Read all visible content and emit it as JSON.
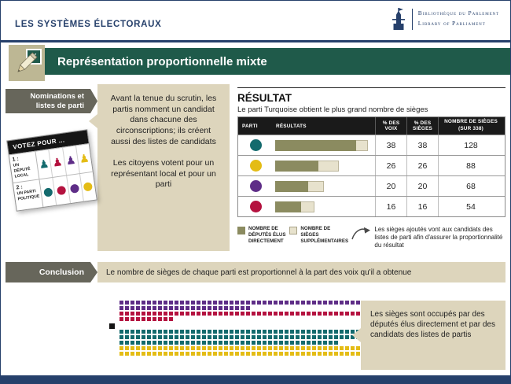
{
  "colors": {
    "navy": "#26406b",
    "green": "#1f5a4a",
    "ribbon_gray": "#67665b",
    "beige": "#ddd5bc",
    "bar_direct": "#8b8b60",
    "bar_supplementary": "#e7e2cd",
    "turquoise": "#136a6d",
    "yellow": "#e4bc15",
    "purple": "#5e2d87",
    "crimson": "#b4123f"
  },
  "icons": {
    "x_mark": "✗",
    "pawn": "♟"
  },
  "header": {
    "title": "LES SYSTÈMES ÉLECTORAUX",
    "logo_line1": "Bibliothèque du Parlement",
    "logo_line2": "Library of Parliament"
  },
  "title_banner": "Représentation proportionnelle mixte",
  "nominations": {
    "ribbon_label": "Nominations et listes de parti",
    "paragraph1": "Avant la tenue du scrutin, les partis nomment un candidat dans chacune des circonscriptions; ils créent aussi des listes de candidats",
    "paragraph2": "Les citoyens votent pour un représentant local et pour un parti"
  },
  "ballot": {
    "header": "VOTEZ POUR ...",
    "rows": [
      {
        "num": "1 :",
        "label": "UN DÉPUTÉ LOCAL"
      },
      {
        "num": "2 :",
        "label": "UN PARTI POLITIQUE"
      }
    ],
    "party_order": [
      "turquoise",
      "crimson",
      "purple",
      "yellow"
    ]
  },
  "result": {
    "title": "RÉSULTAT",
    "subtitle": "Le parti Turquoise obtient le plus grand nombre de sièges",
    "table": {
      "headers": {
        "parti": "PARTI",
        "resultats": "RÉSULTATS",
        "voix": "% DES VOIX",
        "sieges": "% DES SIÈGES",
        "nombre": "NOMBRE DE SIÈGES",
        "nombre_sub": "(SUR 338)"
      },
      "rows": [
        {
          "party": "turquoise",
          "color": "#136a6d",
          "pct_votes": 38,
          "pct_seats": 38,
          "seats": 128,
          "direct": 112,
          "supplementary": 16
        },
        {
          "party": "yellow",
          "color": "#e4bc15",
          "pct_votes": 26,
          "pct_seats": 26,
          "seats": 88,
          "direct": 60,
          "supplementary": 28
        },
        {
          "party": "purple",
          "color": "#5e2d87",
          "pct_votes": 20,
          "pct_seats": 20,
          "seats": 68,
          "direct": 46,
          "supplementary": 22
        },
        {
          "party": "crimson",
          "color": "#b4123f",
          "pct_votes": 16,
          "pct_seats": 16,
          "seats": 54,
          "direct": 36,
          "supplementary": 18
        }
      ]
    },
    "legend": {
      "direct_label": "NOMBRE DE DÉPUTÉS ÉLUS DIRECTEMENT",
      "supplementary_label": "NOMBRE DE SIÈGES SUPPLÉMENTAIRES",
      "note": "Les sièges ajoutés vont aux candidats des listes de parti afin d'assurer la proportionnalité du résultat"
    }
  },
  "conclusion": {
    "ribbon_label": "Conclusion",
    "text": "Le nombre de sièges de chaque parti est proportionnel à la part des voix qu'il a obtenue"
  },
  "chamber": {
    "total_seats": 338,
    "speaker_seats": 1,
    "groups": [
      {
        "blocks": [
          {
            "party": "purple",
            "color": "#5e2d87",
            "seats": 68
          },
          {
            "party": "crimson",
            "color": "#b4123f",
            "seats": 54
          }
        ]
      },
      {
        "blocks": [
          {
            "party": "turquoise",
            "color": "#136a6d",
            "seats": 128
          },
          {
            "party": "yellow",
            "color": "#e4bc15",
            "seats": 88
          }
        ]
      }
    ],
    "callout": "Les sièges sont occupés par des députés élus directement et par des candidats des listes de partis"
  },
  "chart_data": {
    "type": "bar",
    "title": "RÉSULTAT",
    "subtitle": "Le parti Turquoise obtient le plus grand nombre de sièges",
    "categories": [
      "Turquoise",
      "Jaune",
      "Violet",
      "Cramoisi"
    ],
    "series": [
      {
        "name": "Nombre de députés élus directement",
        "values": [
          112,
          60,
          46,
          36
        ]
      },
      {
        "name": "Nombre de sièges supplémentaires",
        "values": [
          16,
          28,
          22,
          18
        ]
      }
    ],
    "stacked": true,
    "pct_des_voix": [
      38,
      26,
      20,
      16
    ],
    "pct_des_sieges": [
      38,
      26,
      20,
      16
    ],
    "nombre_de_sieges_sur_338": [
      128,
      88,
      68,
      54
    ],
    "total_seats": 338,
    "legend_position": "bottom",
    "grid": false
  }
}
